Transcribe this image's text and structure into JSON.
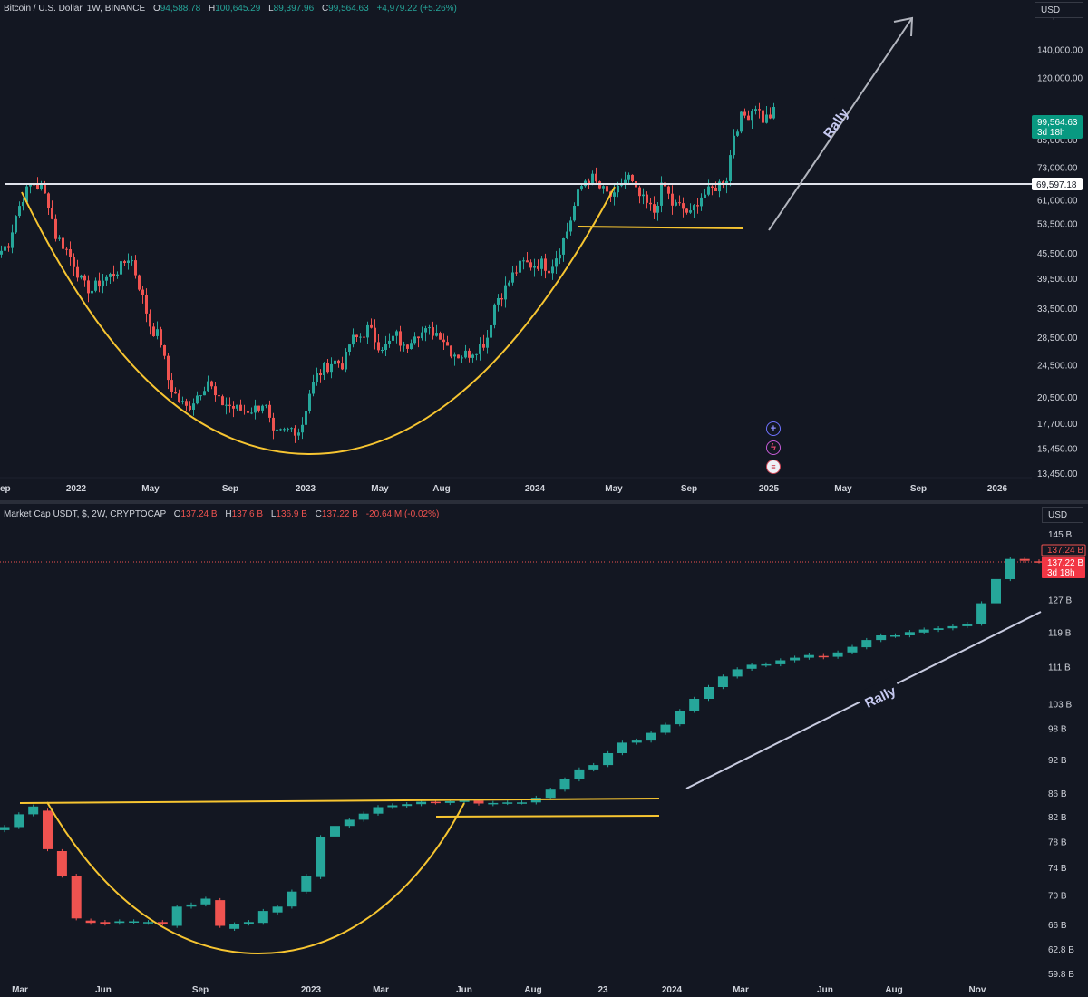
{
  "top": {
    "legend": {
      "symbol": "Bitcoin / U.S. Dollar, 1W, BINANCE",
      "o_key": "O",
      "o": "94,588.78",
      "h_key": "H",
      "h": "100,645.29",
      "l_key": "L",
      "l": "89,397.96",
      "c_key": "C",
      "c": "99,564.63",
      "change": "+4,979.22 (+5.26%)"
    },
    "currency": "USD",
    "last_price": "99,564.63",
    "countdown": "3d 18h",
    "resistance_label": "69,597.18",
    "rally": "Rally",
    "icons": [
      "plus-circle-icon",
      "lightning-icon",
      "flag-icon"
    ],
    "colors": {
      "up": "#26a69a",
      "down": "#ef5350",
      "cup": "#f7c531",
      "line": "#ffffff",
      "arrow": "#b2b5be"
    }
  },
  "bottom": {
    "legend": {
      "symbol": "Market Cap USDT, $, 2W, CRYPTOCAP",
      "o_key": "O",
      "o": "137.24 B",
      "h_key": "H",
      "h": "137.6 B",
      "l_key": "L",
      "l": "136.9 B",
      "c_key": "C",
      "c": "137.22 B",
      "change": "-20.64 M (-0.02%)"
    },
    "currency": "USD",
    "price_label_1": "137.24 B",
    "price_label_2": "137.22 B",
    "countdown": "3d 18h",
    "rally": "Rally"
  },
  "chart_data": [
    {
      "type": "candlestick",
      "title": "Bitcoin / U.S. Dollar, 1W, BINANCE",
      "y_scale": "log",
      "ylim": [
        13450,
        175000
      ],
      "y_ticks": [
        "170,000.00",
        "140,000.00",
        "120,000.00",
        "85,000.00",
        "73,000.00",
        "61,000.00",
        "53,500.00",
        "45,500.00",
        "39,500.00",
        "33,500.00",
        "28,500.00",
        "24,500.00",
        "20,500.00",
        "17,700.00",
        "15,450.00",
        "13,450.00"
      ],
      "y_tick_values": [
        170000,
        140000,
        120000,
        85000,
        73000,
        61000,
        53500,
        45500,
        39500,
        33500,
        28500,
        24500,
        20500,
        17700,
        15450,
        13450
      ],
      "x_ticks": [
        "ep",
        "2022",
        "May",
        "Sep",
        "2023",
        "May",
        "Aug",
        "2024",
        "May",
        "Sep",
        "2025",
        "May",
        "Sep",
        "2026"
      ],
      "x_tick_positions": [
        0,
        84,
        166,
        254,
        337,
        419,
        487,
        590,
        677,
        760,
        848,
        930,
        1013,
        1100
      ],
      "anchors": [
        [
          0,
          46000
        ],
        [
          8,
          48000
        ],
        [
          16,
          56000
        ],
        [
          24,
          62000
        ],
        [
          34,
          67000
        ],
        [
          44,
          65000
        ],
        [
          52,
          60000
        ],
        [
          60,
          50000
        ],
        [
          70,
          47000
        ],
        [
          80,
          43000
        ],
        [
          90,
          38000
        ],
        [
          100,
          37000
        ],
        [
          110,
          39000
        ],
        [
          120,
          40000
        ],
        [
          132,
          42000
        ],
        [
          142,
          45000
        ],
        [
          152,
          38000
        ],
        [
          165,
          30000
        ],
        [
          175,
          28500
        ],
        [
          185,
          22000
        ],
        [
          195,
          20200
        ],
        [
          205,
          19200
        ],
        [
          218,
          21000
        ],
        [
          228,
          22500
        ],
        [
          238,
          20000
        ],
        [
          248,
          19700
        ],
        [
          258,
          19200
        ],
        [
          268,
          19000
        ],
        [
          280,
          19200
        ],
        [
          290,
          20000
        ],
        [
          300,
          16500
        ],
        [
          310,
          16800
        ],
        [
          320,
          17200
        ],
        [
          330,
          17000
        ],
        [
          340,
          21000
        ],
        [
          348,
          23000
        ],
        [
          356,
          24000
        ],
        [
          366,
          25000
        ],
        [
          378,
          24500
        ],
        [
          385,
          28000
        ],
        [
          395,
          28500
        ],
        [
          405,
          30000
        ],
        [
          415,
          27500
        ],
        [
          425,
          27000
        ],
        [
          435,
          29000
        ],
        [
          445,
          26500
        ],
        [
          455,
          29500
        ],
        [
          465,
          29200
        ],
        [
          475,
          29500
        ],
        [
          485,
          29000
        ],
        [
          495,
          26500
        ],
        [
          505,
          25800
        ],
        [
          515,
          26000
        ],
        [
          525,
          27000
        ],
        [
          535,
          28000
        ],
        [
          545,
          35000
        ],
        [
          555,
          37000
        ],
        [
          565,
          40500
        ],
        [
          575,
          43000
        ],
        [
          585,
          42500
        ],
        [
          595,
          43000
        ],
        [
          605,
          41800
        ],
        [
          615,
          46000
        ],
        [
          625,
          52000
        ],
        [
          635,
          62000
        ],
        [
          643,
          68000
        ],
        [
          652,
          68500
        ],
        [
          660,
          65000
        ],
        [
          668,
          63000
        ],
        [
          676,
          61500
        ],
        [
          684,
          67000
        ],
        [
          692,
          69000
        ],
        [
          700,
          63500
        ],
        [
          710,
          60000
        ],
        [
          720,
          57000
        ],
        [
          730,
          67000
        ],
        [
          740,
          59500
        ],
        [
          750,
          58500
        ],
        [
          760,
          56000
        ],
        [
          770,
          62000
        ],
        [
          780,
          63500
        ],
        [
          790,
          66000
        ],
        [
          800,
          69000
        ],
        [
          808,
          88000
        ],
        [
          816,
          96000
        ],
        [
          824,
          98000
        ],
        [
          832,
          103000
        ],
        [
          840,
          95000
        ],
        [
          848,
          97000
        ],
        [
          853,
          99564.63
        ]
      ],
      "key_levels": {
        "resistance": 69597.18,
        "last": 99564.63
      },
      "annotations": [
        "Rally"
      ]
    },
    {
      "type": "candlestick",
      "title": "Market Cap USDT, $, 2W, CRYPTOCAP",
      "ylim": [
        58.8,
        148
      ],
      "y_ticks": [
        "145 B",
        "127 B",
        "119 B",
        "111 B",
        "103 B",
        "98 B",
        "92 B",
        "86 B",
        "82 B",
        "78 B",
        "74 B",
        "70 B",
        "66 B",
        "62.8 B",
        "59.8 B"
      ],
      "y_tick_values": [
        145,
        127,
        119,
        111,
        103,
        98,
        92,
        86,
        82,
        78,
        74,
        70,
        66,
        62.8,
        59.8
      ],
      "x_ticks": [
        "Mar",
        "Jun",
        "Sep",
        "2023",
        "Mar",
        "Jun",
        "Aug",
        "23",
        "2024",
        "Mar",
        "Jun",
        "Aug",
        "Nov"
      ],
      "x_tick_positions": [
        22,
        114,
        221,
        343,
        420,
        512,
        588,
        665,
        741,
        817,
        910,
        986,
        1078
      ],
      "values": [
        [
          79.8,
          80.3
        ],
        [
          80.3,
          82.4
        ],
        [
          82.4,
          83.7
        ],
        [
          83.0,
          76.8
        ],
        [
          76.5,
          72.8
        ],
        [
          72.8,
          66.8
        ],
        [
          66.5,
          66.2
        ],
        [
          66.3,
          66.1
        ],
        [
          66.2,
          66.4
        ],
        [
          66.3,
          66.4
        ],
        [
          66.2,
          66.3
        ],
        [
          66.3,
          66.1
        ],
        [
          65.8,
          68.4
        ],
        [
          68.4,
          68.7
        ],
        [
          68.7,
          69.5
        ],
        [
          69.3,
          65.8
        ],
        [
          65.4,
          66.0
        ],
        [
          66.1,
          66.3
        ],
        [
          66.2,
          67.8
        ],
        [
          67.6,
          68.4
        ],
        [
          68.4,
          70.5
        ],
        [
          70.5,
          72.8
        ],
        [
          72.6,
          78.7
        ],
        [
          78.8,
          80.5
        ],
        [
          80.5,
          81.5
        ],
        [
          81.5,
          82.5
        ],
        [
          82.5,
          83.6
        ],
        [
          83.6,
          83.9
        ],
        [
          83.8,
          84.1
        ],
        [
          84.1,
          84.5
        ],
        [
          84.5,
          84.4
        ],
        [
          84.3,
          84.6
        ],
        [
          84.6,
          84.7
        ],
        [
          84.7,
          84.2
        ],
        [
          84.1,
          84.3
        ],
        [
          84.3,
          84.4
        ],
        [
          84.4,
          84.4
        ],
        [
          84.4,
          85.2
        ],
        [
          85.2,
          86.6
        ],
        [
          86.6,
          88.4
        ],
        [
          88.4,
          90.2
        ],
        [
          90.2,
          91.0
        ],
        [
          91.0,
          93.2
        ],
        [
          93.2,
          95.2
        ],
        [
          95.2,
          95.6
        ],
        [
          95.6,
          97.1
        ],
        [
          97.1,
          98.7
        ],
        [
          98.8,
          101.5
        ],
        [
          101.5,
          104.0
        ],
        [
          104.0,
          106.5
        ],
        [
          106.5,
          108.8
        ],
        [
          108.8,
          110.4
        ],
        [
          110.5,
          111.4
        ],
        [
          111.3,
          111.5
        ],
        [
          111.5,
          112.4
        ],
        [
          112.4,
          113.0
        ],
        [
          113.0,
          113.6
        ],
        [
          113.4,
          113.1
        ],
        [
          113.2,
          114.2
        ],
        [
          114.2,
          115.5
        ],
        [
          115.4,
          117.1
        ],
        [
          117.1,
          118.2
        ],
        [
          118.1,
          118.2
        ],
        [
          118.2,
          119.0
        ],
        [
          118.9,
          119.6
        ],
        [
          119.5,
          119.9
        ],
        [
          119.9,
          120.4
        ],
        [
          120.4,
          121.0
        ],
        [
          121.0,
          126.1
        ],
        [
          126.1,
          132.4
        ],
        [
          132.4,
          137.9
        ],
        [
          137.9,
          137.4
        ],
        [
          137.24,
          137.22
        ]
      ],
      "key_levels": {
        "last": 137.22
      },
      "annotations": [
        "Rally"
      ]
    }
  ]
}
